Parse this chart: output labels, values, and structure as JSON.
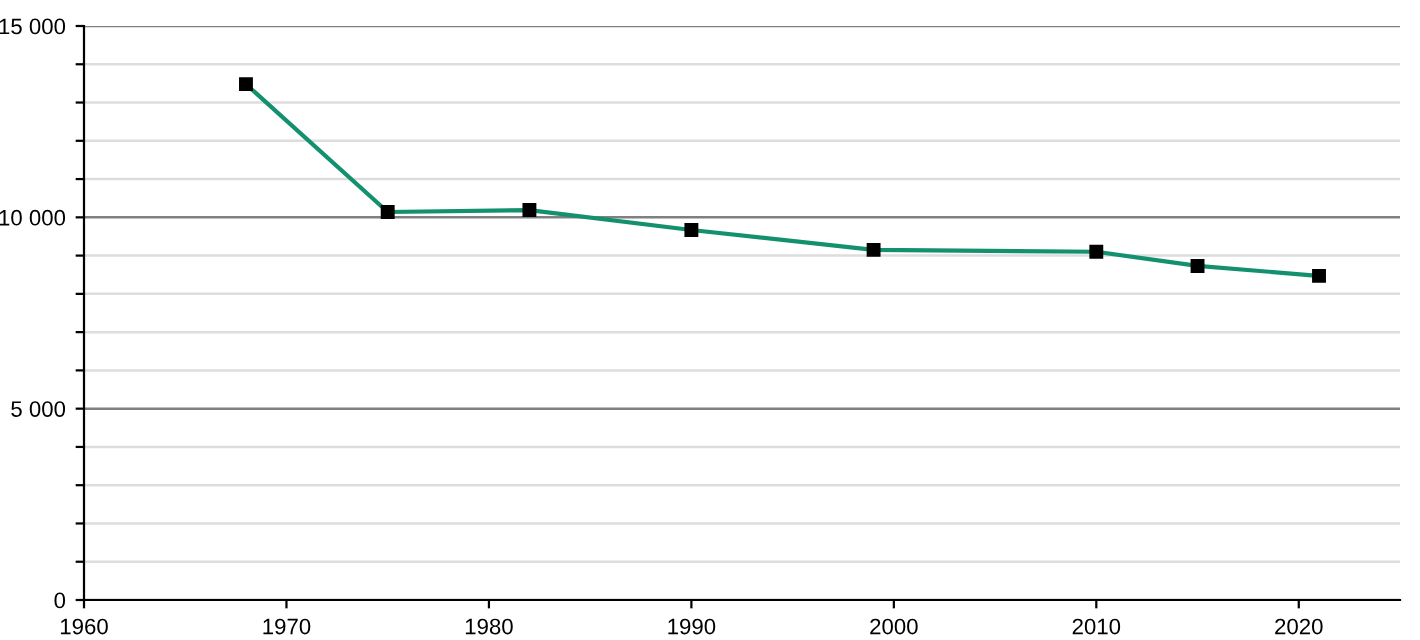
{
  "chart_data": {
    "type": "line",
    "x": [
      1968,
      1975,
      1982,
      1990,
      1999,
      2010,
      2015,
      2021
    ],
    "series": [
      {
        "color": "#13906e",
        "values": [
          13480,
          10140,
          10190,
          9670,
          9150,
          9100,
          8730,
          8470
        ]
      }
    ],
    "xlim": [
      1960,
      2025
    ],
    "xticks": [
      1960,
      1970,
      1980,
      1990,
      2000,
      2010,
      2020
    ],
    "ylim": [
      0,
      15000
    ],
    "yticks": [
      {
        "value": 0,
        "label": "0"
      },
      {
        "value": 1000,
        "label": null
      },
      {
        "value": 2000,
        "label": null
      },
      {
        "value": 3000,
        "label": null
      },
      {
        "value": 4000,
        "label": null
      },
      {
        "value": 5000,
        "label": "5 000"
      },
      {
        "value": 6000,
        "label": null
      },
      {
        "value": 7000,
        "label": null
      },
      {
        "value": 8000,
        "label": null
      },
      {
        "value": 9000,
        "label": null
      },
      {
        "value": 10000,
        "label": "10 000"
      },
      {
        "value": 11000,
        "label": null
      },
      {
        "value": 12000,
        "label": null
      },
      {
        "value": 13000,
        "label": null
      },
      {
        "value": 14000,
        "label": null
      },
      {
        "value": 15000,
        "label": "15 000"
      }
    ],
    "grid": "y",
    "marker": "square",
    "line_style": "solid"
  }
}
